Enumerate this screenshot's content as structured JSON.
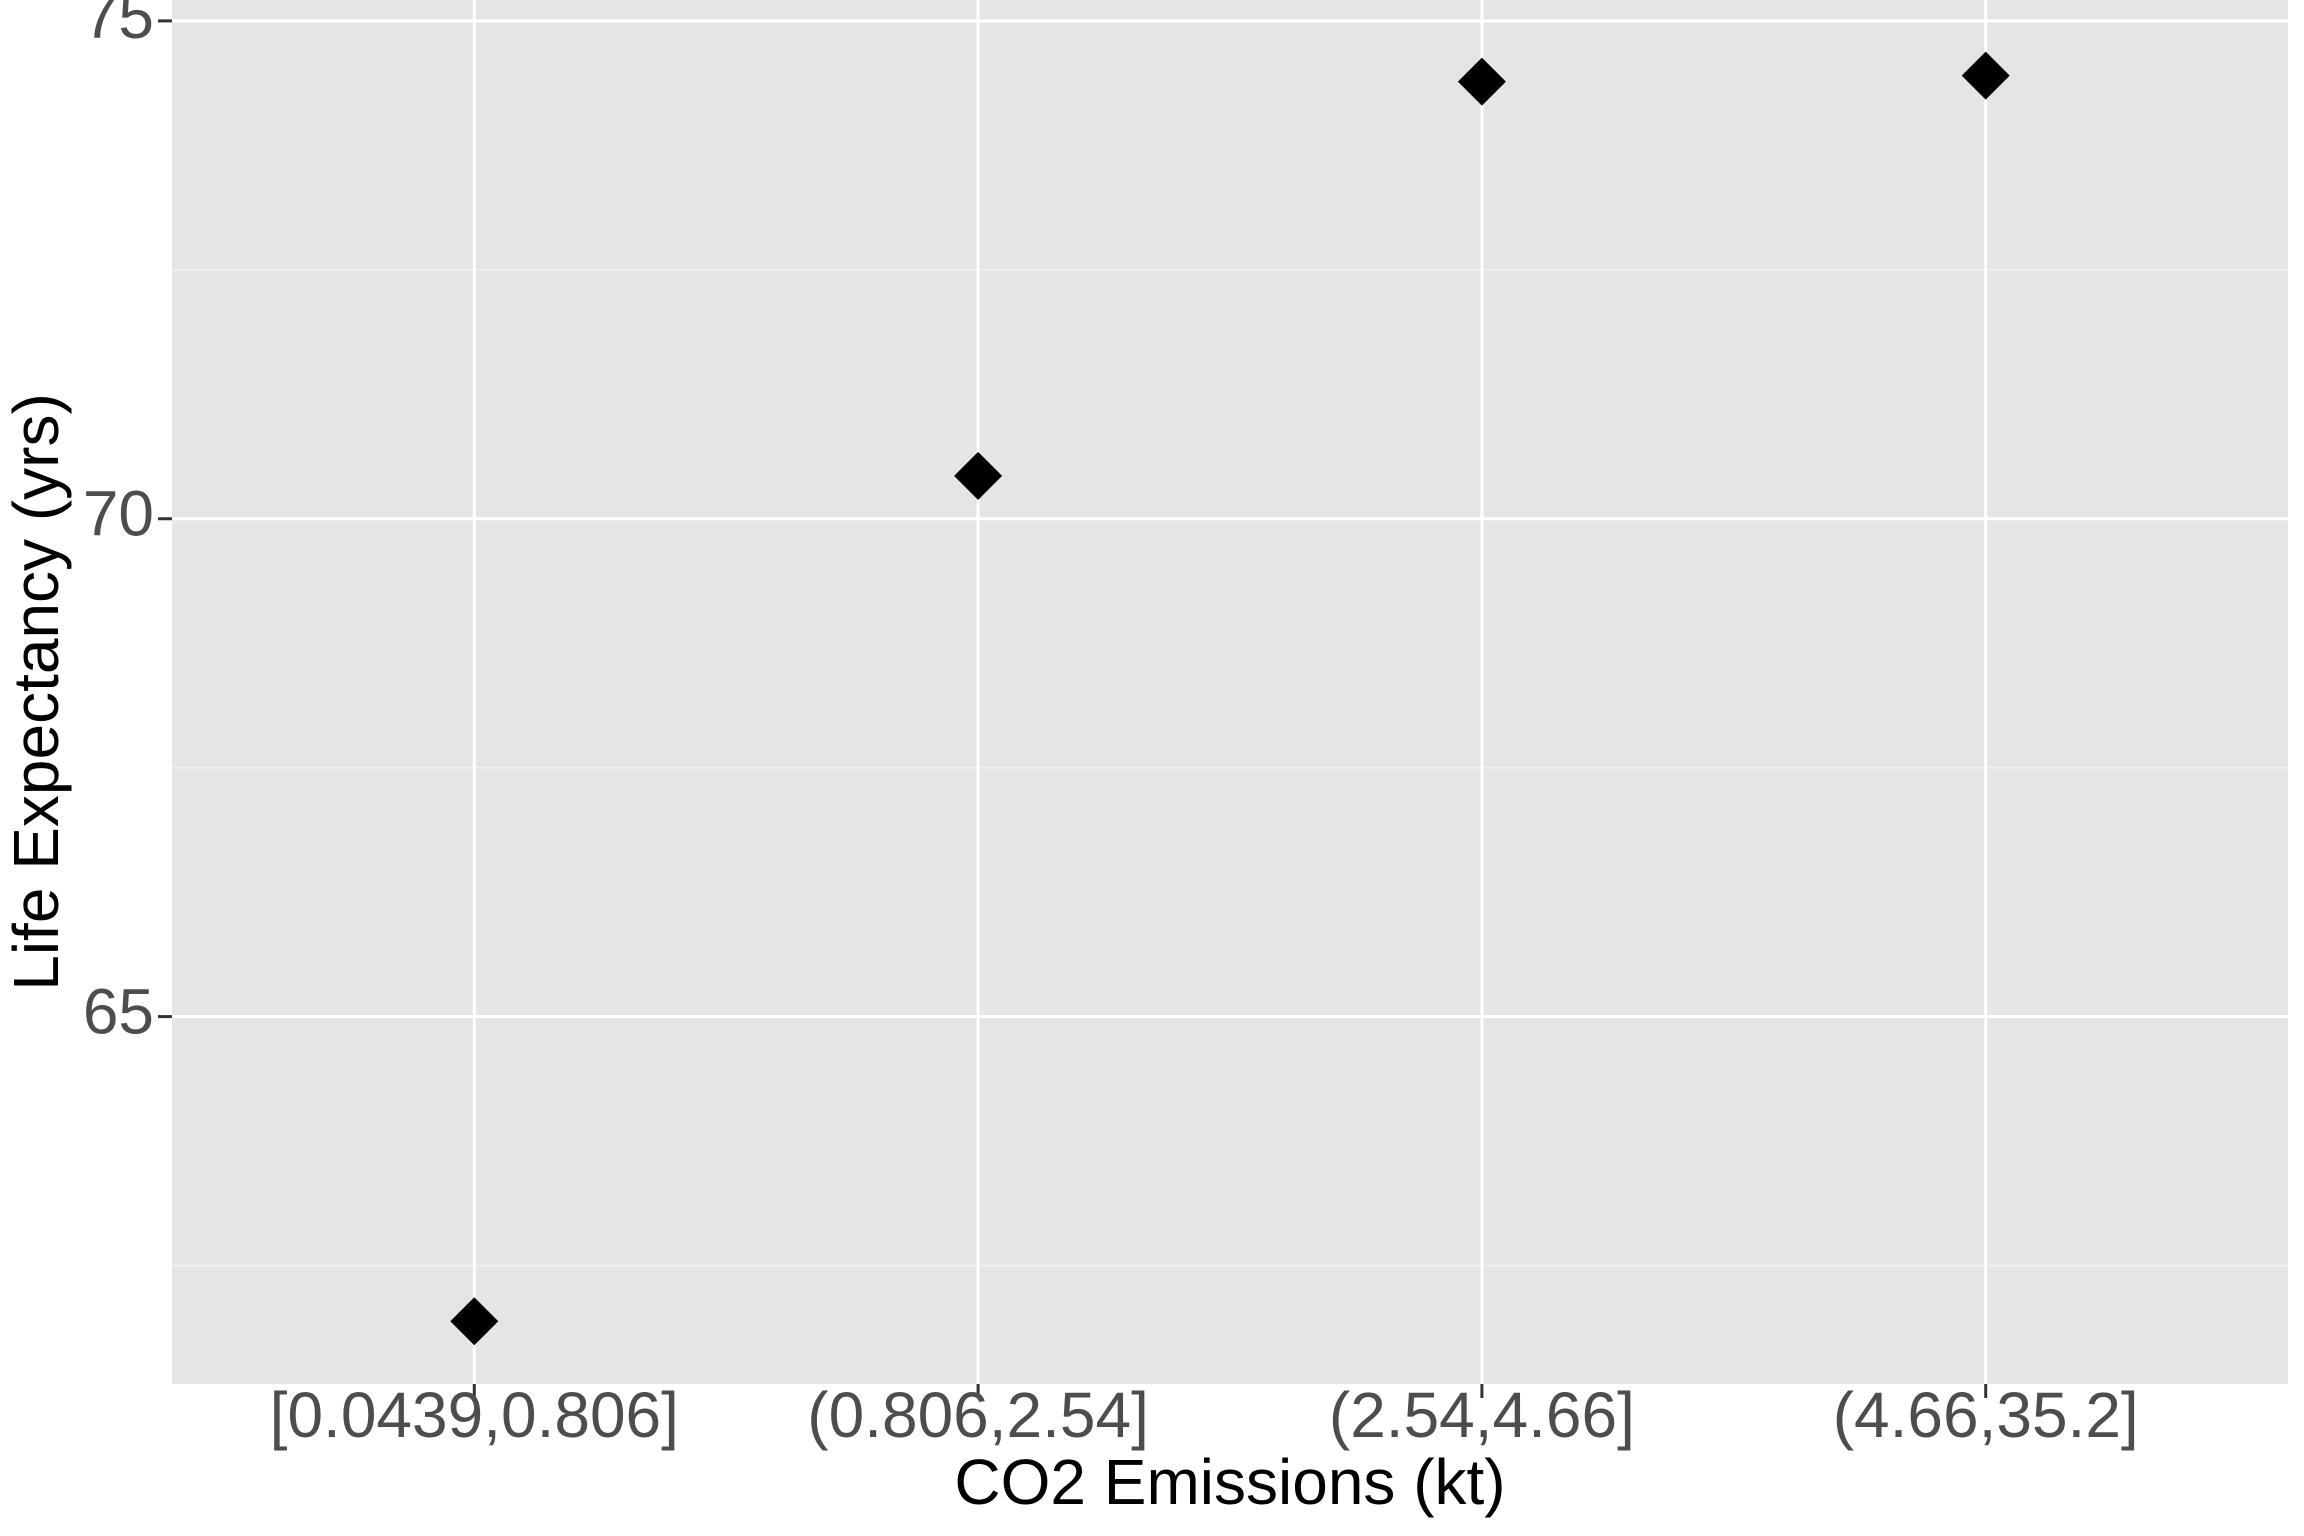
{
  "chart_data": {
    "type": "scatter",
    "x_label": "CO2 Emissions (kt)",
    "y_label": "Life Expectancy (yrs)",
    "categories": [
      "[0.0439,0.806]",
      "(0.806,2.54]",
      "(2.54,4.66]",
      "(4.66,35.2]"
    ],
    "values": [
      61.94,
      70.43,
      74.39,
      74.45
    ],
    "color": "#000000",
    "marker": "diamond",
    "ylim": [
      61.31,
      75.21
    ],
    "yticks": [
      65,
      70,
      75
    ],
    "minor_yticks": [
      62.5,
      67.5,
      72.5
    ],
    "grid": true
  }
}
